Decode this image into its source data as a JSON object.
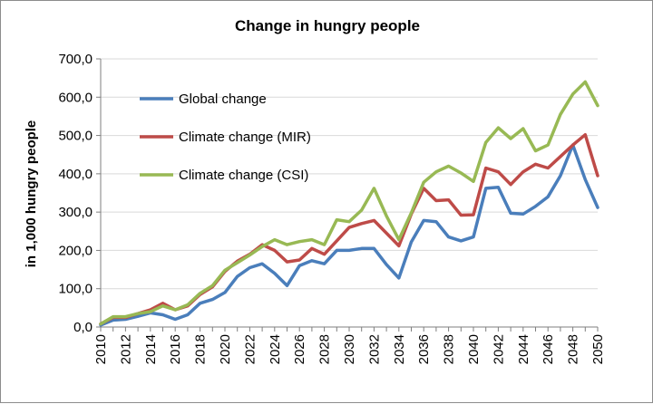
{
  "chart_data": {
    "type": "line",
    "title": "Change in hungry people",
    "xlabel": "",
    "ylabel": "in 1,000 hungry people",
    "ylim": [
      0,
      700
    ],
    "yticks": [
      "0,0",
      "100,0",
      "200,0",
      "300,0",
      "400,0",
      "500,0",
      "600,0",
      "700,0"
    ],
    "xticks": [
      "2010",
      "2012",
      "2014",
      "2016",
      "2018",
      "2020",
      "2022",
      "2024",
      "2026",
      "2028",
      "2030",
      "2032",
      "2034",
      "2036",
      "2038",
      "2040",
      "2042",
      "2044",
      "2046",
      "2048",
      "2050"
    ],
    "grid": true,
    "legend_position": "upper-left",
    "x": [
      2010,
      2011,
      2012,
      2013,
      2014,
      2015,
      2016,
      2017,
      2018,
      2019,
      2020,
      2021,
      2022,
      2023,
      2024,
      2025,
      2026,
      2027,
      2028,
      2029,
      2030,
      2031,
      2032,
      2033,
      2034,
      2035,
      2036,
      2037,
      2038,
      2039,
      2040,
      2041,
      2042,
      2043,
      2044,
      2045,
      2046,
      2047,
      2048,
      2049,
      2050
    ],
    "series": [
      {
        "name": "Global change",
        "color": "#4a7ebb",
        "values": [
          5,
          18,
          20,
          28,
          37,
          32,
          20,
          32,
          62,
          72,
          90,
          132,
          155,
          165,
          140,
          108,
          160,
          173,
          165,
          200,
          200,
          205,
          205,
          163,
          128,
          222,
          278,
          275,
          235,
          225,
          235,
          362,
          365,
          297,
          295,
          315,
          340,
          395,
          475,
          385,
          312
        ]
      },
      {
        "name": "Climate change (MIR)",
        "color": "#be4b48",
        "values": [
          8,
          25,
          25,
          35,
          45,
          62,
          45,
          55,
          85,
          105,
          145,
          172,
          190,
          215,
          200,
          170,
          175,
          205,
          190,
          225,
          260,
          270,
          278,
          245,
          212,
          295,
          362,
          330,
          332,
          292,
          293,
          415,
          405,
          372,
          405,
          425,
          415,
          445,
          475,
          502,
          395
        ]
      },
      {
        "name": "Climate change (CSI)",
        "color": "#98b954",
        "values": [
          8,
          27,
          27,
          35,
          40,
          55,
          45,
          58,
          88,
          108,
          148,
          168,
          188,
          210,
          228,
          215,
          223,
          228,
          215,
          280,
          275,
          305,
          362,
          290,
          228,
          298,
          378,
          405,
          420,
          402,
          380,
          482,
          520,
          492,
          518,
          460,
          475,
          555,
          608,
          640,
          578
        ]
      }
    ]
  }
}
